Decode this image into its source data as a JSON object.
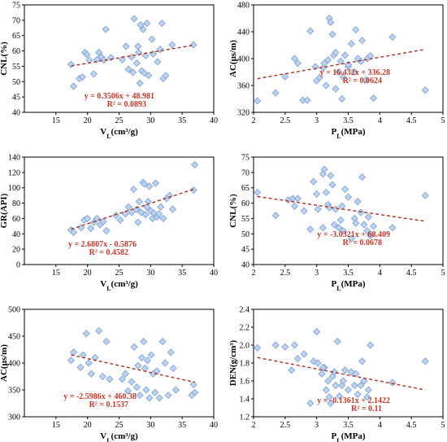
{
  "colors": {
    "marker_fill": "#bcd3f0",
    "marker_stroke": "#7f9fcc",
    "trend": "#a93226",
    "equation": "#c0392b"
  },
  "chart_data": [
    {
      "type": "scatter",
      "xlabel": "VL(cm³/g)",
      "ylabel": "CNL(%)",
      "xlim": [
        10,
        40
      ],
      "ylim": [
        40,
        75
      ],
      "xticks": [
        15,
        20,
        25,
        30,
        35,
        40
      ],
      "yticks": [
        40,
        45,
        50,
        55,
        60,
        65,
        70,
        75
      ],
      "equation": "y = 0.3506x + 48.981",
      "r2": "R² = 0.0893",
      "trend": {
        "slope": 0.3506,
        "intercept": 48.981
      },
      "x": [
        17.4,
        17.8,
        18.7,
        19.2,
        19.6,
        19.9,
        20.3,
        21.0,
        21.5,
        21.8,
        22.2,
        22.6,
        22.9,
        23.7,
        25.5,
        26.1,
        26.5,
        27.0,
        27.2,
        27.4,
        27.8,
        28.0,
        28.1,
        28.3,
        28.4,
        28.6,
        28.8,
        29.0,
        29.2,
        29.4,
        29.7,
        30.2,
        30.4,
        31.1,
        31.5,
        31.8,
        32.0,
        32.4,
        33.4,
        36.8
      ],
      "y": [
        55.6,
        48.5,
        51.0,
        51.5,
        59.5,
        58.8,
        57.0,
        52.5,
        57.2,
        59.5,
        58.0,
        57.0,
        67.0,
        57.8,
        57.2,
        61.5,
        54.0,
        58.0,
        53.0,
        70.5,
        56.0,
        61.5,
        59.5,
        49.5,
        68.5,
        53.5,
        67.0,
        52.8,
        58.5,
        69.0,
        52.0,
        63.8,
        59.0,
        56.5,
        60.5,
        69.0,
        51.0,
        52.0,
        62.0,
        62.0
      ]
    },
    {
      "type": "scatter",
      "xlabel": "PL(MPa)",
      "ylabel": "AC(μs/m)",
      "xlim": [
        2,
        5
      ],
      "ylim": [
        320,
        480
      ],
      "xticks": [
        2,
        2.5,
        3,
        3.5,
        4,
        4.5,
        5
      ],
      "yticks": [
        320,
        360,
        400,
        440,
        480
      ],
      "equation": "y = 16.432x + 336.28",
      "r2": "R² = 0.0624",
      "trend": {
        "slope": 16.432,
        "intercept": 336.28
      },
      "x": [
        2.06,
        2.35,
        2.5,
        2.65,
        2.7,
        2.78,
        2.85,
        2.9,
        2.98,
        3.0,
        3.05,
        3.1,
        3.12,
        3.15,
        3.18,
        3.2,
        3.22,
        3.25,
        3.27,
        3.3,
        3.3,
        3.35,
        3.38,
        3.4,
        3.42,
        3.45,
        3.5,
        3.5,
        3.55,
        3.6,
        3.62,
        3.65,
        3.7,
        3.72,
        3.78,
        3.8,
        3.85,
        3.9,
        4.2,
        4.72
      ],
      "y": [
        337,
        349,
        373,
        400,
        393,
        338,
        338,
        441,
        388,
        367,
        372,
        386,
        393,
        360,
        398,
        460,
        454,
        436,
        405,
        355,
        409,
        380,
        396,
        340,
        372,
        405,
        388,
        391,
        422,
        380,
        443,
        400,
        396,
        427,
        368,
        400,
        404,
        341,
        432,
        353
      ]
    },
    {
      "type": "scatter",
      "xlabel": "VL(cm³/g)",
      "ylabel": "GR(API)",
      "xlim": [
        10,
        40
      ],
      "ylim": [
        0,
        140
      ],
      "xticks": [
        15,
        20,
        25,
        30,
        35,
        40
      ],
      "yticks": [
        0,
        20,
        40,
        60,
        80,
        100,
        120,
        140
      ],
      "equation": "y = 2.6807x - 0.5876",
      "r2": "R² = 0.4582",
      "trend": {
        "slope": 2.6807,
        "intercept": -0.5876
      },
      "x": [
        17.4,
        17.8,
        19.0,
        19.5,
        20.0,
        20.5,
        21.0,
        21.5,
        22.0,
        22.5,
        23.0,
        24.5,
        25.2,
        26.0,
        26.5,
        27.0,
        27.3,
        27.8,
        28.0,
        28.2,
        28.5,
        28.8,
        29.0,
        29.2,
        29.4,
        29.6,
        29.8,
        30.0,
        30.3,
        30.5,
        30.8,
        31.0,
        31.3,
        31.6,
        32.0,
        32.5,
        33.0,
        33.5,
        36.8,
        37.0
      ],
      "y": [
        45,
        42,
        48,
        58,
        60,
        47,
        55,
        60,
        52,
        56,
        44,
        64,
        58,
        66,
        75,
        68,
        98,
        72,
        55,
        82,
        68,
        107,
        105,
        65,
        75,
        82,
        102,
        70,
        60,
        67,
        106,
        62,
        66,
        75,
        60,
        86,
        90,
        72,
        97,
        130
      ]
    },
    {
      "type": "scatter",
      "xlabel": "PL(MPa)",
      "ylabel": "CNL(%)",
      "xlim": [
        2,
        5
      ],
      "ylim": [
        40,
        75
      ],
      "xticks": [
        2,
        2.5,
        3,
        3.5,
        4,
        4.5,
        5
      ],
      "yticks": [
        40,
        45,
        50,
        55,
        60,
        65,
        70,
        75
      ],
      "equation": "y = -3.0321x + 68.409",
      "r2": "R² = 0.0678",
      "trend": {
        "slope": -3.0321,
        "intercept": 68.409
      },
      "x": [
        2.06,
        2.35,
        2.55,
        2.62,
        2.65,
        2.7,
        2.8,
        2.9,
        2.95,
        3.0,
        3.02,
        3.1,
        3.12,
        3.15,
        3.18,
        3.2,
        3.22,
        3.25,
        3.28,
        3.3,
        3.35,
        3.38,
        3.4,
        3.42,
        3.45,
        3.5,
        3.55,
        3.6,
        3.62,
        3.65,
        3.7,
        3.72,
        3.75,
        3.8,
        3.82,
        3.85,
        3.9,
        4.2,
        4.72,
        3.1
      ],
      "y": [
        63.5,
        56.0,
        61.0,
        61.5,
        59.0,
        61.5,
        57.5,
        51.5,
        67.0,
        63.0,
        58.0,
        69.5,
        71.0,
        63.5,
        59.5,
        58.5,
        69.0,
        66.0,
        53.0,
        58.0,
        52.0,
        54.5,
        59.0,
        51.0,
        64.5,
        62.0,
        48.5,
        55.0,
        53.5,
        60.5,
        57.0,
        68.5,
        53.0,
        51.0,
        55.5,
        49.5,
        52.5,
        52.0,
        62.5,
        52.0
      ]
    },
    {
      "type": "scatter",
      "xlabel": "VL(cm³/g)",
      "ylabel": "AC(μs/m)",
      "xlim": [
        10,
        40
      ],
      "ylim": [
        300,
        500
      ],
      "xticks": [
        15,
        20,
        25,
        30,
        35,
        40
      ],
      "yticks": [
        300,
        350,
        400,
        450,
        500
      ],
      "equation": "y = -2.5986x + 460.38",
      "r2": "R² = 0.1537",
      "trend": {
        "slope": -2.5986,
        "intercept": 460.38
      },
      "x": [
        17.4,
        17.8,
        18.9,
        19.3,
        19.8,
        20.2,
        20.6,
        21.2,
        21.8,
        22.4,
        23.0,
        23.5,
        25.5,
        26.0,
        26.4,
        27.0,
        27.4,
        27.8,
        28.0,
        28.3,
        28.6,
        28.9,
        29.1,
        29.3,
        29.5,
        29.8,
        30.1,
        30.4,
        30.7,
        31.0,
        31.4,
        31.9,
        32.3,
        32.8,
        33.2,
        33.6,
        34.0,
        36.8,
        37.0,
        36.5
      ],
      "y": [
        405,
        420,
        392,
        415,
        455,
        400,
        380,
        410,
        460,
        375,
        440,
        370,
        370,
        380,
        348,
        365,
        430,
        355,
        395,
        340,
        410,
        440,
        390,
        350,
        405,
        335,
        415,
        380,
        345,
        385,
        335,
        440,
        400,
        340,
        420,
        390,
        350,
        360,
        345,
        340
      ]
    },
    {
      "type": "scatter",
      "xlabel": "PL(MPa)",
      "ylabel": "DEN(g/cm³)",
      "xlim": [
        2,
        5
      ],
      "ylim": [
        1.2,
        2.4
      ],
      "xticks": [
        2,
        2.5,
        3,
        3.5,
        4,
        4.5,
        5
      ],
      "yticks": [
        1.2,
        1.4,
        1.6,
        1.8,
        2.0,
        2.2,
        2.4
      ],
      "equation": "y = -0.1361x + 2.1422",
      "r2": "R² = 0.11",
      "trend": {
        "slope": -0.1361,
        "intercept": 2.1422
      },
      "x": [
        2.06,
        2.35,
        2.5,
        2.6,
        2.65,
        2.7,
        2.8,
        2.9,
        2.95,
        3.0,
        3.02,
        3.08,
        3.12,
        3.15,
        3.18,
        3.2,
        3.22,
        3.25,
        3.28,
        3.3,
        3.33,
        3.36,
        3.4,
        3.42,
        3.45,
        3.5,
        3.55,
        3.6,
        3.62,
        3.65,
        3.7,
        3.72,
        3.75,
        3.8,
        3.82,
        3.85,
        4.2,
        4.72,
        3.1,
        3.25
      ],
      "y": [
        1.97,
        2.0,
        1.98,
        1.72,
        2.0,
        1.85,
        1.9,
        1.35,
        1.82,
        2.15,
        1.8,
        1.68,
        1.75,
        1.5,
        1.6,
        1.42,
        1.35,
        1.65,
        1.7,
        1.55,
        2.04,
        1.43,
        1.55,
        1.6,
        1.72,
        1.5,
        1.7,
        1.55,
        1.68,
        1.45,
        1.55,
        1.82,
        1.6,
        1.42,
        1.5,
        2.0,
        1.58,
        1.82,
        1.75,
        1.65
      ]
    }
  ]
}
